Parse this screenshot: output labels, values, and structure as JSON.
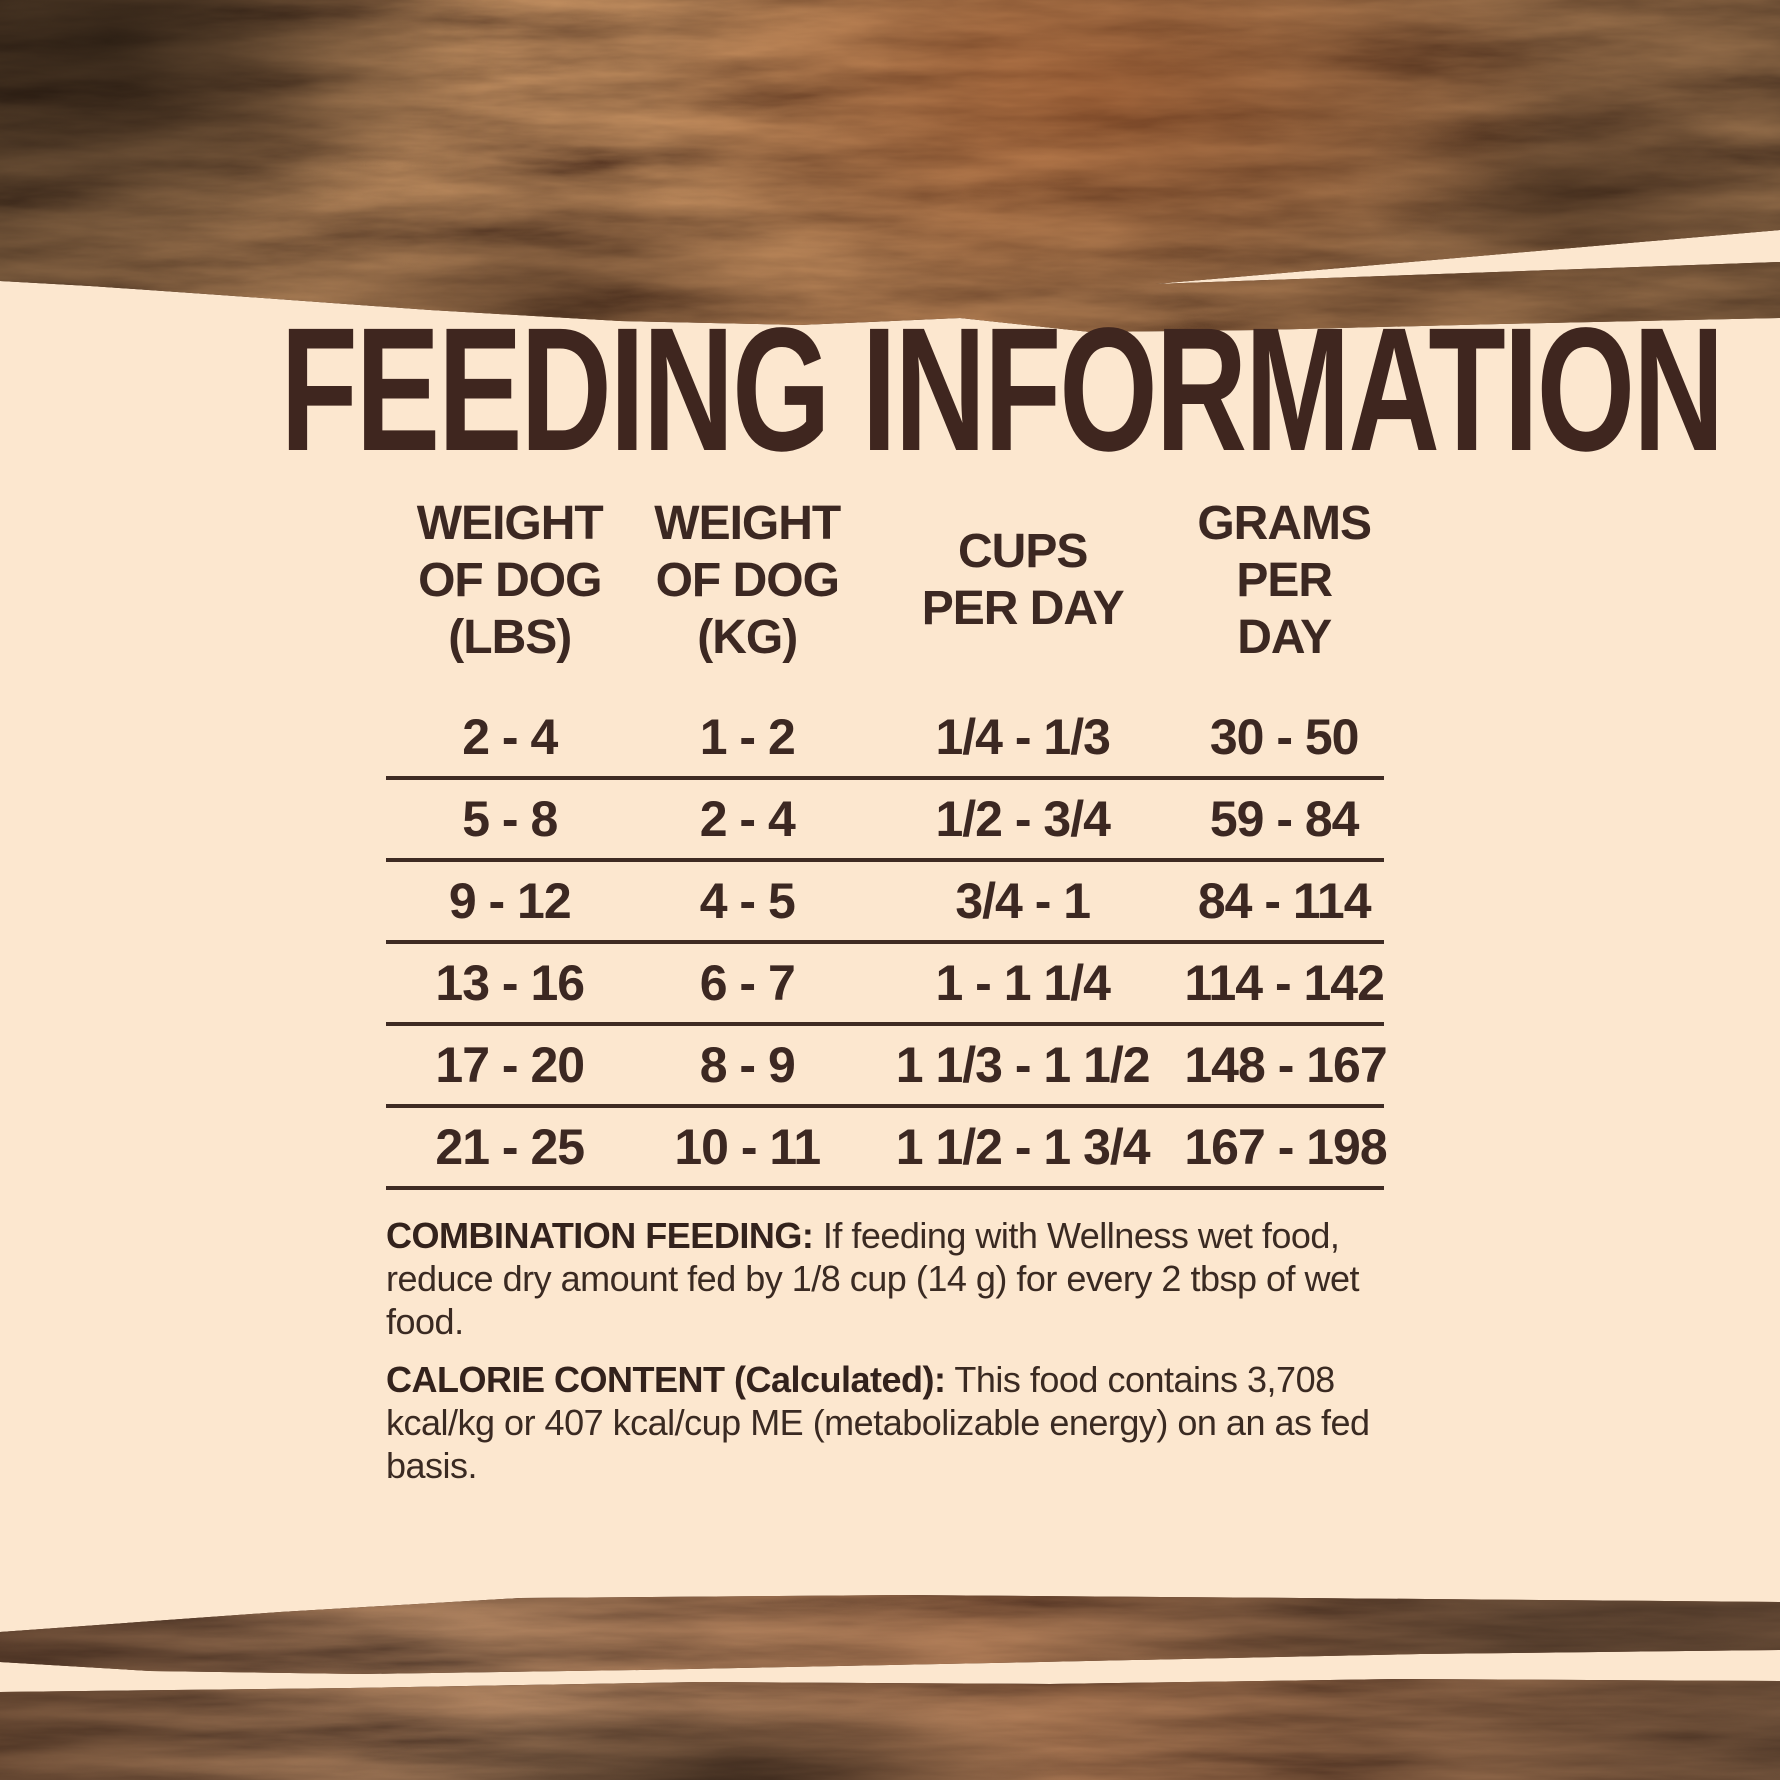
{
  "page": {
    "title": "FEEDING INFORMATION"
  },
  "table": {
    "headers": [
      "WEIGHT\nOF DOG\n(LBS)",
      "WEIGHT\nOF DOG\n(KG)",
      "CUPS\nPER DAY",
      "GRAMS\nPER DAY"
    ],
    "rows": [
      [
        "2 - 4",
        "1 - 2",
        "1/4 - 1/3",
        "30 - 50"
      ],
      [
        "5 - 8",
        "2 - 4",
        "1/2 - 3/4",
        "59 - 84"
      ],
      [
        "9 - 12",
        "4 - 5",
        "3/4 - 1",
        "84 - 114"
      ],
      [
        "13 - 16",
        "6 - 7",
        "1 - 1 1/4",
        "114 - 142"
      ],
      [
        "17 - 20",
        "8 - 9",
        "1 1/3 - 1 1/2",
        "148 - 167"
      ],
      [
        "21 - 25",
        "10 - 11",
        "1 1/2 - 1 3/4",
        "167 - 198"
      ]
    ]
  },
  "notes": [
    {
      "label": "COMBINATION FEEDING:",
      "text": " If feeding with Wellness wet food, reduce dry amount fed by 1/8 cup (14 g) for every 2 tbsp of wet food."
    },
    {
      "label": "CALORIE CONTENT (Calculated):",
      "text": " This food contains 3,708 kcal/kg or 407 kcal/cup ME (metabolizable energy) on an as fed basis."
    }
  ],
  "colors": {
    "background_cream": "#fce7cf",
    "text_dark_brown": "#3c2822",
    "title_brown": "#3f261f",
    "divider_brown": "#3f2b23",
    "wood_base": "#61300f",
    "wood_dark": "#2a120a"
  }
}
